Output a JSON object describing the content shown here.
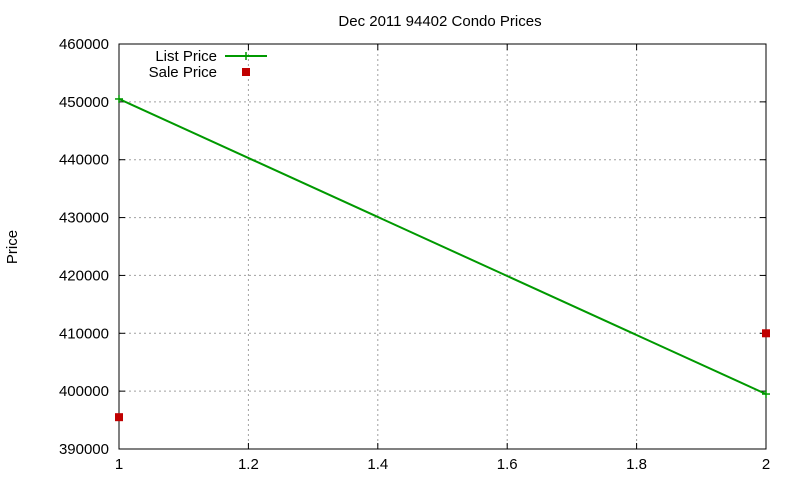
{
  "chart_data": {
    "type": "line",
    "title": "Dec 2011 94402 Condo Prices",
    "xlabel": "",
    "ylabel": "Price",
    "xlim": [
      1,
      2
    ],
    "ylim": [
      390000,
      460000
    ],
    "x_ticks": [
      1,
      1.2,
      1.4,
      1.6,
      1.8,
      2
    ],
    "x_tick_labels": [
      "1",
      "1.2",
      "1.4",
      "1.6",
      "1.8",
      "2"
    ],
    "y_ticks": [
      390000,
      400000,
      410000,
      420000,
      430000,
      440000,
      450000,
      460000
    ],
    "y_tick_labels": [
      "390000",
      "400000",
      "410000",
      "420000",
      "430000",
      "440000",
      "450000",
      "460000"
    ],
    "grid": true,
    "legend_position": "top-left",
    "series": [
      {
        "name": "List Price",
        "style": "linespoints",
        "color": "#009900",
        "x": [
          1,
          2
        ],
        "y": [
          450500,
          399500
        ]
      },
      {
        "name": "Sale Price",
        "style": "points",
        "color": "#c00000",
        "x": [
          1,
          2
        ],
        "y": [
          395500,
          410000
        ]
      }
    ]
  }
}
